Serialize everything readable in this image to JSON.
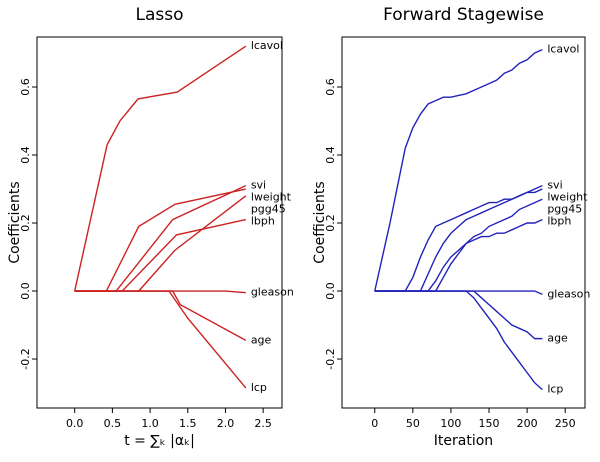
{
  "chart_data": [
    {
      "type": "line",
      "title": "Lasso",
      "xlabel": "t = ∑ₖ |αₖ|",
      "ylabel": "Coefficients",
      "xlim": [
        -0.5,
        2.75
      ],
      "ylim": [
        -0.344,
        0.747
      ],
      "xticks": [
        {
          "value": 0,
          "label": "0.0"
        },
        {
          "value": 0.5,
          "label": "0.5"
        },
        {
          "value": 1,
          "label": "1.0"
        },
        {
          "value": 1.5,
          "label": "1.5"
        },
        {
          "value": 2,
          "label": "2.0"
        },
        {
          "value": 2.5,
          "label": "2.5"
        }
      ],
      "yticks": [
        -0.2,
        {
          "value": 0,
          "label": "0.0"
        },
        0.2,
        0.4,
        0.6
      ],
      "series": [
        {
          "name": "lcavol",
          "color": "#cc2222",
          "x": [
            0,
            0.43,
            0.6,
            0.84,
            1.36,
            2.27
          ],
          "values": [
            0,
            0.43,
            0.5,
            0.565,
            0.585,
            0.72
          ]
        },
        {
          "name": "svi",
          "color": "#cc2222",
          "x": [
            0,
            0.55,
            1.3,
            2.27
          ],
          "values": [
            0,
            0,
            0.21,
            0.31
          ]
        },
        {
          "name": "lweight",
          "color": "#cc2222",
          "x": [
            0,
            0.42,
            0.85,
            1.33,
            2.27
          ],
          "values": [
            0,
            0,
            0.19,
            0.255,
            0.3
          ]
        },
        {
          "name": "pgg45",
          "color": "#cc2222",
          "x": [
            0,
            0.85,
            1.33,
            2.27
          ],
          "values": [
            0,
            0,
            0.12,
            0.28
          ]
        },
        {
          "name": "lbph",
          "color": "#cc2222",
          "x": [
            0,
            0.63,
            1.35,
            2.27
          ],
          "values": [
            0,
            0,
            0.165,
            0.21
          ]
        },
        {
          "name": "gleason",
          "color": "#cc2222",
          "x": [
            0,
            2.0,
            2.27
          ],
          "values": [
            0,
            0,
            -0.005
          ]
        },
        {
          "name": "age",
          "color": "#cc2222",
          "x": [
            0,
            1.3,
            1.4,
            2.27
          ],
          "values": [
            0,
            0,
            -0.04,
            -0.145
          ]
        },
        {
          "name": "lcp",
          "color": "#cc2222",
          "x": [
            0,
            1.25,
            1.5,
            2.27
          ],
          "values": [
            0,
            0,
            -0.08,
            -0.285
          ]
        }
      ]
    },
    {
      "type": "line",
      "title": "Forward Stagewise",
      "xlabel": "Iteration",
      "ylabel": "Coefficients",
      "xlim": [
        -43,
        276
      ],
      "ylim": [
        -0.344,
        0.747
      ],
      "xticks": [
        0,
        50,
        100,
        150,
        200,
        250
      ],
      "yticks": [
        -0.2,
        {
          "value": 0,
          "label": "0.0"
        },
        0.2,
        0.4,
        0.6
      ],
      "x": [
        0,
        10,
        20,
        30,
        40,
        50,
        60,
        70,
        80,
        90,
        100,
        110,
        120,
        130,
        140,
        150,
        160,
        170,
        180,
        190,
        200,
        210,
        220
      ],
      "series": [
        {
          "name": "lcavol",
          "color": "#2222bb",
          "values": [
            0,
            0.1,
            0.2,
            0.31,
            0.42,
            0.48,
            0.52,
            0.55,
            0.56,
            0.57,
            0.57,
            0.575,
            0.58,
            0.59,
            0.6,
            0.61,
            0.62,
            0.64,
            0.65,
            0.67,
            0.68,
            0.7,
            0.71
          ]
        },
        {
          "name": "svi",
          "color": "#2222bb",
          "values": [
            0,
            0,
            0,
            0,
            0,
            0,
            0,
            0.05,
            0.1,
            0.14,
            0.17,
            0.19,
            0.21,
            0.22,
            0.23,
            0.24,
            0.25,
            0.26,
            0.27,
            0.28,
            0.29,
            0.3,
            0.31
          ]
        },
        {
          "name": "lweight",
          "color": "#2222bb",
          "values": [
            0,
            0,
            0,
            0,
            0,
            0.04,
            0.1,
            0.15,
            0.19,
            0.2,
            0.21,
            0.22,
            0.23,
            0.24,
            0.25,
            0.26,
            0.26,
            0.27,
            0.27,
            0.28,
            0.29,
            0.29,
            0.3
          ]
        },
        {
          "name": "pgg45",
          "color": "#2222bb",
          "values": [
            0,
            0,
            0,
            0,
            0,
            0,
            0,
            0,
            0,
            0.04,
            0.08,
            0.11,
            0.14,
            0.16,
            0.17,
            0.19,
            0.2,
            0.21,
            0.22,
            0.24,
            0.25,
            0.26,
            0.27
          ]
        },
        {
          "name": "lbph",
          "color": "#2222bb",
          "values": [
            0,
            0,
            0,
            0,
            0,
            0,
            0,
            0,
            0.03,
            0.07,
            0.1,
            0.12,
            0.14,
            0.15,
            0.16,
            0.16,
            0.17,
            0.17,
            0.18,
            0.19,
            0.2,
            0.2,
            0.21
          ]
        },
        {
          "name": "gleason",
          "color": "#2222bb",
          "values": [
            0,
            0,
            0,
            0,
            0,
            0,
            0,
            0,
            0,
            0,
            0,
            0,
            0,
            0,
            0,
            0,
            0,
            0,
            0,
            0,
            0,
            0,
            -0.01
          ]
        },
        {
          "name": "age",
          "color": "#2222bb",
          "values": [
            0,
            0,
            0,
            0,
            0,
            0,
            0,
            0,
            0,
            0,
            0,
            0,
            0,
            0,
            -0.02,
            -0.04,
            -0.06,
            -0.08,
            -0.1,
            -0.11,
            -0.12,
            -0.14,
            -0.14
          ]
        },
        {
          "name": "lcp",
          "color": "#2222bb",
          "values": [
            0,
            0,
            0,
            0,
            0,
            0,
            0,
            0,
            0,
            0,
            0,
            0,
            0,
            -0.02,
            -0.05,
            -0.08,
            -0.11,
            -0.15,
            -0.18,
            -0.21,
            -0.24,
            -0.27,
            -0.29
          ]
        }
      ]
    }
  ]
}
